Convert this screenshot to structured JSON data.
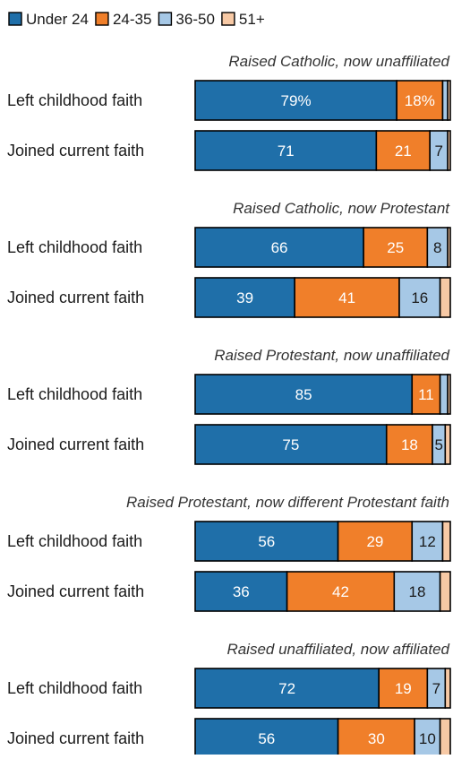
{
  "chart_data": {
    "type": "bar",
    "orientation": "horizontal",
    "stacked": true,
    "legend": {
      "placement": "top-left",
      "entries": [
        {
          "label": "Under 24",
          "color": "#1f6fa9"
        },
        {
          "label": "24-35",
          "color": "#f07f2a"
        },
        {
          "label": "36-50",
          "color": "#a6c8e6"
        },
        {
          "label": "51+",
          "color": "#f7c9a5"
        }
      ]
    },
    "xlim": [
      0,
      100
    ],
    "grid": false,
    "groups": [
      {
        "title": "Raised Catholic, now unaffiliated",
        "rows": [
          {
            "label": "Left childhood faith",
            "values": [
              79,
              18,
              2,
              1
            ],
            "value_labels": [
              "79%",
              "18%",
              "",
              ""
            ]
          },
          {
            "label": "Joined current faith",
            "values": [
              71,
              21,
              7,
              1
            ],
            "value_labels": [
              "71",
              "21",
              "7",
              ""
            ]
          }
        ]
      },
      {
        "title": "Raised Catholic, now Protestant",
        "rows": [
          {
            "label": "Left childhood faith",
            "values": [
              66,
              25,
              8,
              1
            ],
            "value_labels": [
              "66",
              "25",
              "8",
              ""
            ]
          },
          {
            "label": "Joined current faith",
            "values": [
              39,
              41,
              16,
              4
            ],
            "value_labels": [
              "39",
              "41",
              "16",
              ""
            ]
          }
        ]
      },
      {
        "title": "Raised Protestant, now unaffiliated",
        "rows": [
          {
            "label": "Left childhood faith",
            "values": [
              85,
              11,
              3,
              1
            ],
            "value_labels": [
              "85",
              "11",
              "",
              ""
            ]
          },
          {
            "label": "Joined current faith",
            "values": [
              75,
              18,
              5,
              2
            ],
            "value_labels": [
              "75",
              "18",
              "5",
              ""
            ]
          }
        ]
      },
      {
        "title": "Raised Protestant, now different Protestant faith",
        "rows": [
          {
            "label": "Left childhood faith",
            "values": [
              56,
              29,
              12,
              3
            ],
            "value_labels": [
              "56",
              "29",
              "12",
              ""
            ]
          },
          {
            "label": "Joined current faith",
            "values": [
              36,
              42,
              18,
              4
            ],
            "value_labels": [
              "36",
              "42",
              "18",
              ""
            ]
          }
        ]
      },
      {
        "title": "Raised unaffiliated, now affiliated",
        "rows": [
          {
            "label": "Left childhood faith",
            "values": [
              72,
              19,
              7,
              2
            ],
            "value_labels": [
              "72",
              "19",
              "7",
              ""
            ]
          },
          {
            "label": "Joined current faith",
            "values": [
              56,
              30,
              10,
              4
            ],
            "value_labels": [
              "56",
              "30",
              "10",
              ""
            ]
          }
        ]
      }
    ]
  }
}
